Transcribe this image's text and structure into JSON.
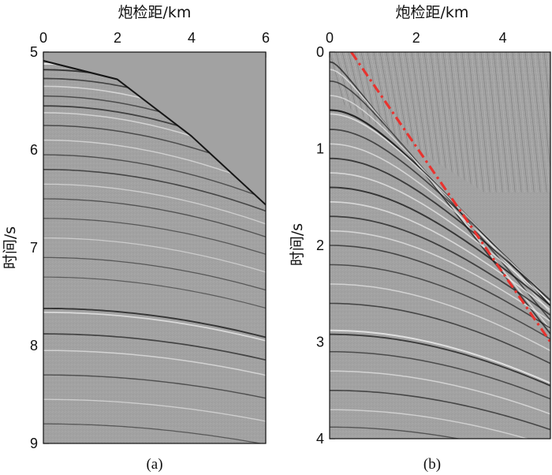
{
  "colors": {
    "background": "#a2a2a2",
    "event_dark": "#161616",
    "event_light": "#f0f0f0",
    "annotation_line": "#e8332f",
    "frame": "#111111"
  },
  "chart_data": [
    {
      "type": "heatmap",
      "panel_label": "(a)",
      "xlabel": "炮检距/km",
      "ylabel": "时间/s",
      "xlim": [
        0,
        6
      ],
      "ylim": [
        5,
        9
      ],
      "y_inverted": true,
      "x_ticks": [
        "0",
        "2",
        "4",
        "6"
      ],
      "y_ticks": [
        "5",
        "6",
        "7",
        "8",
        "9"
      ],
      "x_axis_position": "top",
      "first_arrival_times_s": [
        {
          "offset_km": 0,
          "time_s": 5.08
        },
        {
          "offset_km": 2,
          "time_s": 5.27
        },
        {
          "offset_km": 4,
          "time_s": 5.85
        },
        {
          "offset_km": 6,
          "time_s": 6.55
        }
      ],
      "events": [
        {
          "t0_s": 5.08,
          "vnmo_km_s": 2.18,
          "polarity": "dark",
          "strength": 0.9
        },
        {
          "t0_s": 5.12,
          "vnmo_km_s": 2.2,
          "polarity": "light",
          "strength": 0.8
        },
        {
          "t0_s": 5.18,
          "vnmo_km_s": 2.25,
          "polarity": "dark",
          "strength": 0.7
        },
        {
          "t0_s": 5.27,
          "vnmo_km_s": 2.3,
          "polarity": "dark",
          "strength": 0.55
        },
        {
          "t0_s": 5.35,
          "vnmo_km_s": 2.33,
          "polarity": "light",
          "strength": 0.5
        },
        {
          "t0_s": 5.45,
          "vnmo_km_s": 2.36,
          "polarity": "dark",
          "strength": 0.45
        },
        {
          "t0_s": 5.55,
          "vnmo_km_s": 2.4,
          "polarity": "dark",
          "strength": 0.6
        },
        {
          "t0_s": 5.62,
          "vnmo_km_s": 2.42,
          "polarity": "light",
          "strength": 0.45
        },
        {
          "t0_s": 5.75,
          "vnmo_km_s": 2.46,
          "polarity": "dark",
          "strength": 0.45
        },
        {
          "t0_s": 5.9,
          "vnmo_km_s": 2.5,
          "polarity": "light",
          "strength": 0.4
        },
        {
          "t0_s": 6.05,
          "vnmo_km_s": 2.53,
          "polarity": "dark",
          "strength": 0.4
        },
        {
          "t0_s": 6.2,
          "vnmo_km_s": 2.57,
          "polarity": "dark",
          "strength": 0.5
        },
        {
          "t0_s": 6.35,
          "vnmo_km_s": 2.6,
          "polarity": "light",
          "strength": 0.35
        },
        {
          "t0_s": 6.5,
          "vnmo_km_s": 2.63,
          "polarity": "dark",
          "strength": 0.35
        },
        {
          "t0_s": 6.7,
          "vnmo_km_s": 2.67,
          "polarity": "dark",
          "strength": 0.3
        },
        {
          "t0_s": 6.9,
          "vnmo_km_s": 2.7,
          "polarity": "light",
          "strength": 0.3
        },
        {
          "t0_s": 7.1,
          "vnmo_km_s": 2.73,
          "polarity": "dark",
          "strength": 0.3
        },
        {
          "t0_s": 7.3,
          "vnmo_km_s": 2.76,
          "polarity": "dark",
          "strength": 0.25
        },
        {
          "t0_s": 7.62,
          "vnmo_km_s": 2.8,
          "polarity": "dark",
          "strength": 0.7
        },
        {
          "t0_s": 7.66,
          "vnmo_km_s": 2.82,
          "polarity": "light",
          "strength": 0.6
        },
        {
          "t0_s": 7.88,
          "vnmo_km_s": 2.9,
          "polarity": "dark",
          "strength": 0.55
        },
        {
          "t0_s": 8.05,
          "vnmo_km_s": 2.95,
          "polarity": "light",
          "strength": 0.45
        },
        {
          "t0_s": 8.3,
          "vnmo_km_s": 3.0,
          "polarity": "dark",
          "strength": 0.4
        },
        {
          "t0_s": 8.55,
          "vnmo_km_s": 3.05,
          "polarity": "light",
          "strength": 0.35
        },
        {
          "t0_s": 8.8,
          "vnmo_km_s": 3.1,
          "polarity": "dark",
          "strength": 0.3
        }
      ]
    },
    {
      "type": "heatmap",
      "panel_label": "(b)",
      "xlabel": "炮检距/km",
      "ylabel": "时间/s",
      "xlim": [
        0,
        5.1
      ],
      "ylim": [
        0,
        4
      ],
      "y_inverted": true,
      "x_ticks": [
        "0",
        "2",
        "4"
      ],
      "y_ticks": [
        "0",
        "1",
        "2",
        "3",
        "4"
      ],
      "x_axis_position": "top",
      "events": [
        {
          "t0_s": 0.1,
          "vnmo_km_s": 1.75,
          "polarity": "dark",
          "strength": 0.6
        },
        {
          "t0_s": 0.18,
          "vnmo_km_s": 1.78,
          "polarity": "light",
          "strength": 0.5
        },
        {
          "t0_s": 0.3,
          "vnmo_km_s": 1.85,
          "polarity": "dark",
          "strength": 0.5
        },
        {
          "t0_s": 0.45,
          "vnmo_km_s": 1.92,
          "polarity": "light",
          "strength": 0.45
        },
        {
          "t0_s": 0.6,
          "vnmo_km_s": 2.0,
          "polarity": "dark",
          "strength": 0.9
        },
        {
          "t0_s": 0.64,
          "vnmo_km_s": 2.02,
          "polarity": "light",
          "strength": 0.6
        },
        {
          "t0_s": 0.8,
          "vnmo_km_s": 2.08,
          "polarity": "dark",
          "strength": 0.55
        },
        {
          "t0_s": 0.95,
          "vnmo_km_s": 2.14,
          "polarity": "light",
          "strength": 0.5
        },
        {
          "t0_s": 1.1,
          "vnmo_km_s": 2.2,
          "polarity": "dark",
          "strength": 0.65
        },
        {
          "t0_s": 1.25,
          "vnmo_km_s": 2.25,
          "polarity": "light",
          "strength": 0.55
        },
        {
          "t0_s": 1.4,
          "vnmo_km_s": 2.3,
          "polarity": "dark",
          "strength": 0.7
        },
        {
          "t0_s": 1.55,
          "vnmo_km_s": 2.35,
          "polarity": "light",
          "strength": 0.55
        },
        {
          "t0_s": 1.7,
          "vnmo_km_s": 2.4,
          "polarity": "dark",
          "strength": 0.6
        },
        {
          "t0_s": 1.85,
          "vnmo_km_s": 2.45,
          "polarity": "light",
          "strength": 0.5
        },
        {
          "t0_s": 2.0,
          "vnmo_km_s": 2.5,
          "polarity": "dark",
          "strength": 0.5
        },
        {
          "t0_s": 2.2,
          "vnmo_km_s": 2.56,
          "polarity": "dark",
          "strength": 0.45
        },
        {
          "t0_s": 2.4,
          "vnmo_km_s": 2.62,
          "polarity": "light",
          "strength": 0.45
        },
        {
          "t0_s": 2.6,
          "vnmo_km_s": 2.68,
          "polarity": "dark",
          "strength": 0.5
        },
        {
          "t0_s": 2.88,
          "vnmo_km_s": 2.75,
          "polarity": "light",
          "strength": 0.75
        },
        {
          "t0_s": 2.92,
          "vnmo_km_s": 2.77,
          "polarity": "dark",
          "strength": 0.65
        },
        {
          "t0_s": 3.1,
          "vnmo_km_s": 2.82,
          "polarity": "dark",
          "strength": 0.45
        },
        {
          "t0_s": 3.3,
          "vnmo_km_s": 2.88,
          "polarity": "light",
          "strength": 0.45
        },
        {
          "t0_s": 3.5,
          "vnmo_km_s": 2.94,
          "polarity": "dark",
          "strength": 0.5
        },
        {
          "t0_s": 3.7,
          "vnmo_km_s": 3.0,
          "polarity": "light",
          "strength": 0.4
        },
        {
          "t0_s": 3.88,
          "vnmo_km_s": 3.05,
          "polarity": "dark",
          "strength": 0.35
        }
      ],
      "linear_noise": {
        "t0_s": 0.0,
        "slope_s_per_km": 0.28,
        "max_time_s": 1.45
      },
      "annotation_line": {
        "style": "dash-dot",
        "color": "red",
        "from": {
          "offset_km": 0.5,
          "time_s": 0.0
        },
        "to": {
          "offset_km": 5.1,
          "time_s": 3.0
        }
      }
    }
  ]
}
